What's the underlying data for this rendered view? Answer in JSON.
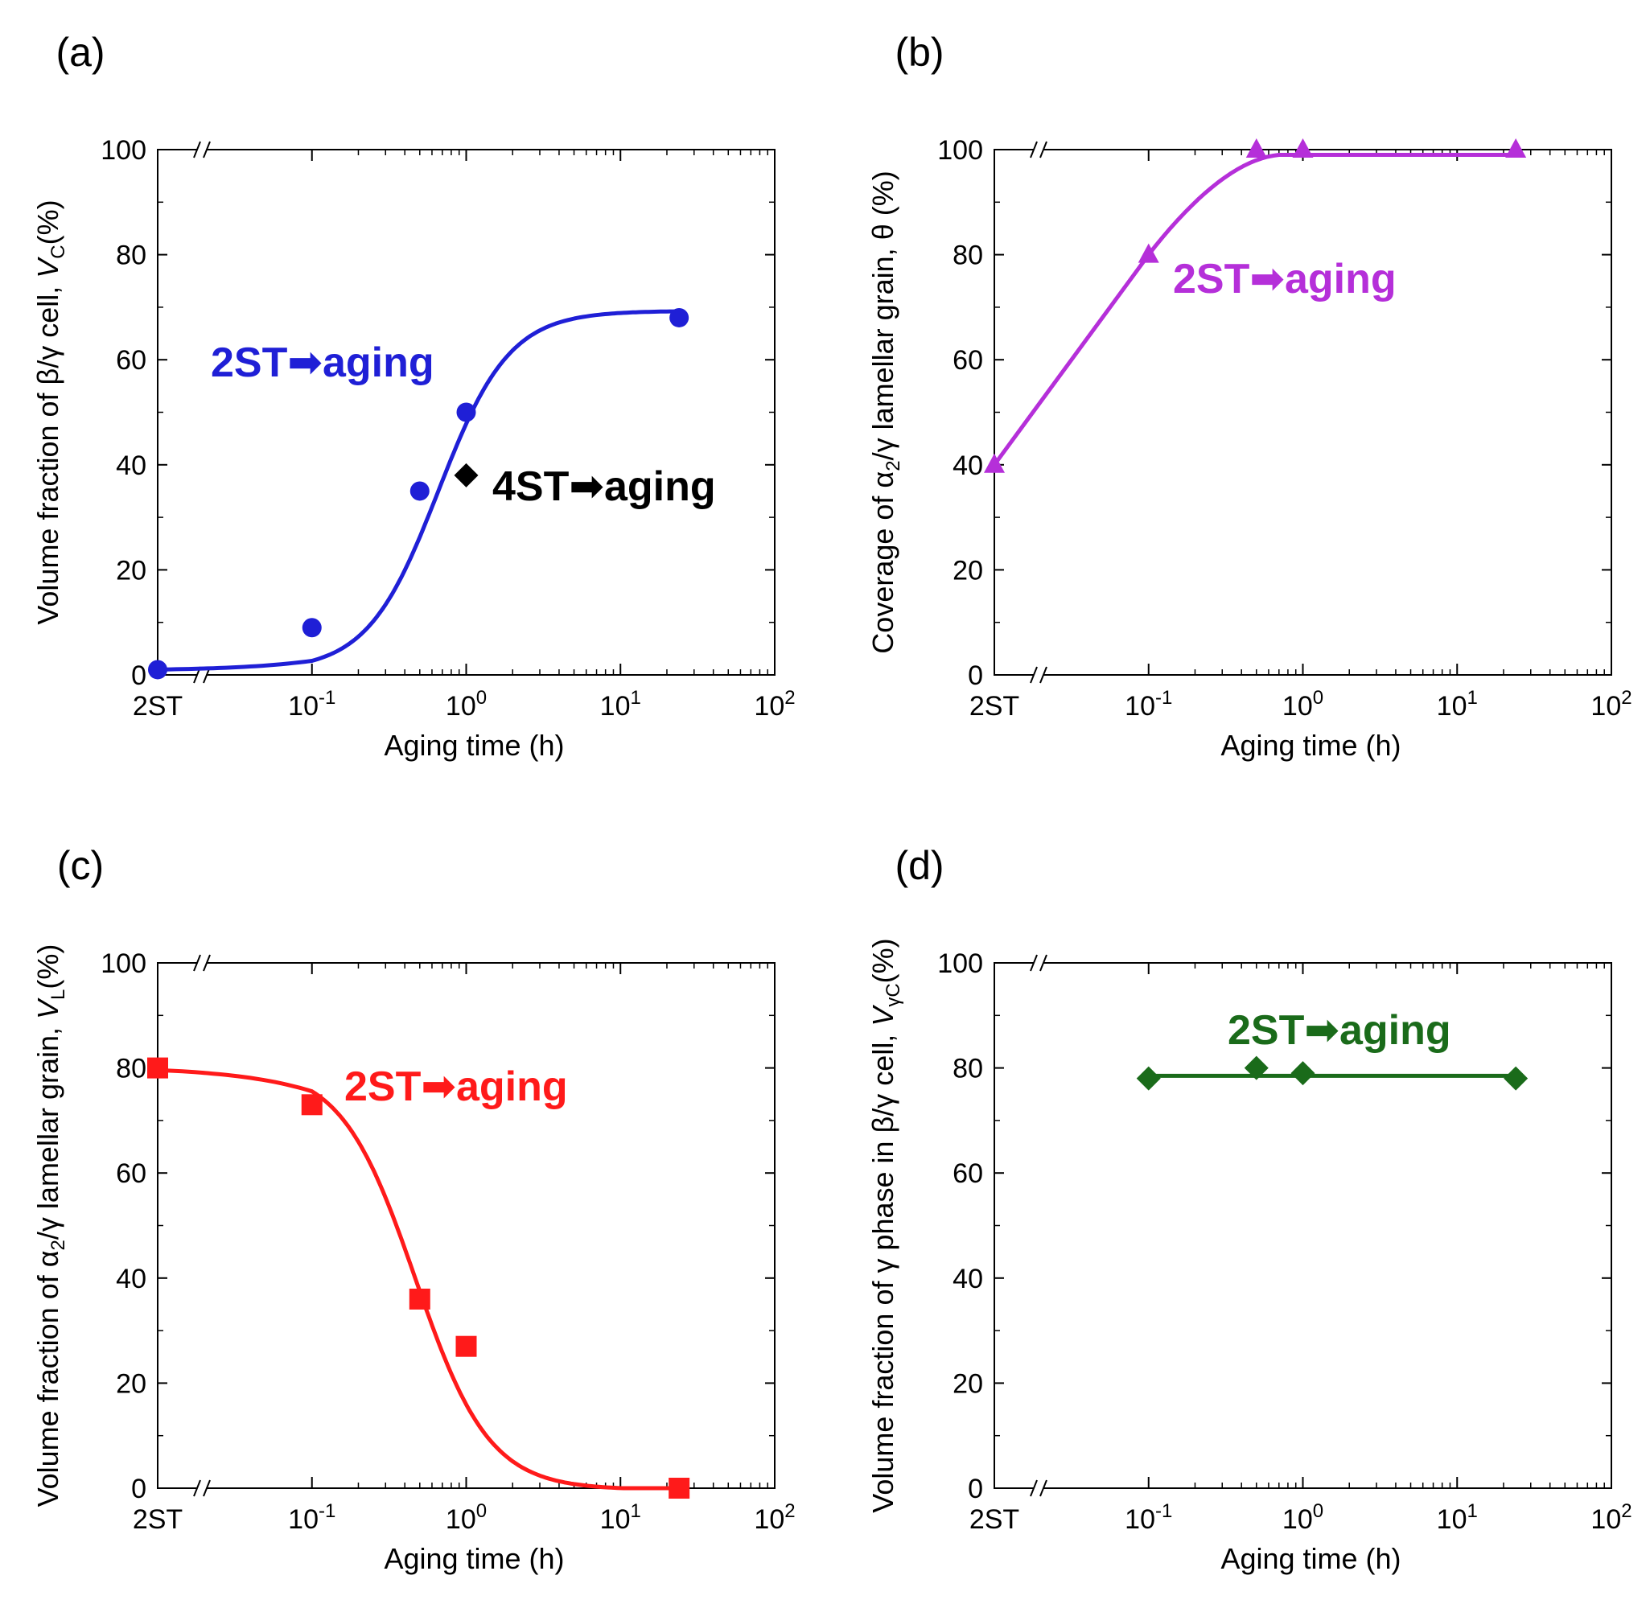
{
  "figure": {
    "background": "#ffffff"
  },
  "chart_data": [
    {
      "panel": "(a)",
      "type": "line",
      "xlabel": "Aging time (h)",
      "ylabel": {
        "prefix": "Volume fraction of β/γ cell, ",
        "var": "V",
        "sub": "C",
        "suffix": "(%)"
      },
      "xscale": "log",
      "x_tick_labels": [
        "2ST",
        "10-1",
        "100",
        "101",
        "102"
      ],
      "y_tick_labels": [
        "0",
        "20",
        "40",
        "60",
        "80",
        "100"
      ],
      "ylim": [
        0,
        100
      ],
      "xlim": [
        "2ST",
        100
      ],
      "axis_break": true,
      "grid": false,
      "series": [
        {
          "name": "2ST➡aging",
          "color": "#1f1fd6",
          "marker": "circle",
          "x": [
            "2ST",
            0.1,
            0.5,
            1,
            24
          ],
          "y": [
            1,
            9,
            35,
            50,
            68
          ],
          "curve": "sigmoid"
        },
        {
          "name": "4ST➡aging",
          "color": "#000000",
          "marker": "diamond",
          "x": [
            1
          ],
          "y": [
            38
          ]
        }
      ]
    },
    {
      "panel": "(b)",
      "type": "line",
      "xlabel": "Aging time (h)",
      "ylabel": {
        "prefix": "Coverage of α",
        "sub": "2",
        "suffix": "/γ lamellar grain, θ (%)"
      },
      "xscale": "log",
      "x_tick_labels": [
        "2ST",
        "10-1",
        "100",
        "101",
        "102"
      ],
      "y_tick_labels": [
        "0",
        "20",
        "40",
        "60",
        "80",
        "100"
      ],
      "ylim": [
        0,
        100
      ],
      "xlim": [
        "2ST",
        100
      ],
      "axis_break": true,
      "grid": false,
      "series": [
        {
          "name": "2ST➡aging",
          "color": "#b52fd9",
          "marker": "triangle",
          "x": [
            "2ST",
            0.1,
            0.5,
            1,
            24
          ],
          "y": [
            40,
            80,
            100,
            100,
            100
          ],
          "curve": "smooth"
        }
      ]
    },
    {
      "panel": "(c)",
      "type": "line",
      "xlabel": "Aging time (h)",
      "ylabel": {
        "prefix": "Volume fraction of α",
        "sub": "2",
        "suffix": "/γ lamellar grain, ",
        "var": "V",
        "sub2": "L",
        "suffix2": "(%)"
      },
      "xscale": "log",
      "x_tick_labels": [
        "2ST",
        "10-1",
        "100",
        "101",
        "102"
      ],
      "y_tick_labels": [
        "0",
        "20",
        "40",
        "60",
        "80",
        "100"
      ],
      "ylim": [
        0,
        100
      ],
      "xlim": [
        "2ST",
        100
      ],
      "axis_break": true,
      "grid": false,
      "series": [
        {
          "name": "2ST➡aging",
          "color": "#ff1a1a",
          "marker": "square",
          "x": [
            "2ST",
            0.1,
            0.5,
            1,
            24
          ],
          "y": [
            80,
            73,
            36,
            27,
            0
          ],
          "curve": "sigmoid"
        }
      ]
    },
    {
      "panel": "(d)",
      "type": "line",
      "xlabel": "Aging time (h)",
      "ylabel": {
        "prefix": "Volume fraction of γ phase in β/γ cell, ",
        "var": "V",
        "sub": "γC",
        "suffix": "(%)"
      },
      "xscale": "log",
      "x_tick_labels": [
        "2ST",
        "10-1",
        "100",
        "101",
        "102"
      ],
      "y_tick_labels": [
        "0",
        "20",
        "40",
        "60",
        "80",
        "100"
      ],
      "ylim": [
        0,
        100
      ],
      "xlim": [
        "2ST",
        100
      ],
      "axis_break": true,
      "grid": false,
      "series": [
        {
          "name": "2ST➡aging",
          "color": "#1a6b1a",
          "marker": "diamond",
          "x": [
            0.1,
            0.5,
            1,
            24
          ],
          "y": [
            78,
            80,
            79,
            78
          ],
          "curve": "flat"
        }
      ]
    }
  ]
}
